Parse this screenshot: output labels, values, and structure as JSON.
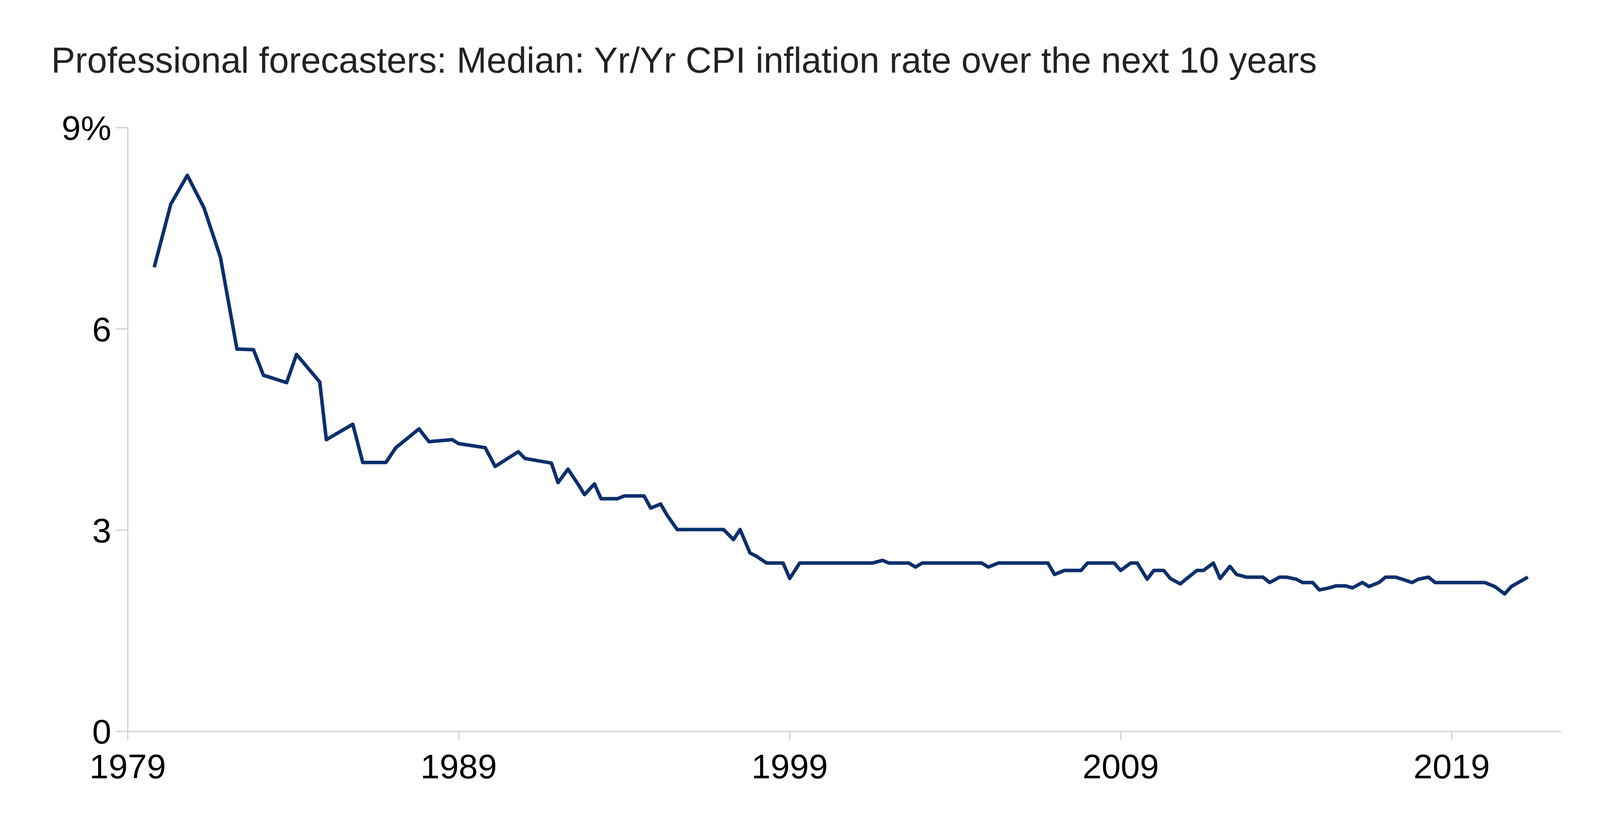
{
  "chart_data": {
    "type": "line",
    "title": "Professional forecasters: Median: Yr/Yr CPI inflation rate over the next 10 years",
    "color": "#0c2f6c",
    "grid": false,
    "xlim": [
      1979,
      2022.3
    ],
    "xticks": [
      1979,
      1989,
      1999,
      2009,
      2019
    ],
    "ylim": [
      0,
      9
    ],
    "yticks": [
      0,
      3,
      6,
      {
        "value": 9,
        "label": "9%"
      }
    ],
    "x": [
      1979.8,
      1980.3,
      1980.8,
      1981.3,
      1981.8,
      1982.3,
      1982.8,
      1983.1,
      1983.8,
      1984.1,
      1984.8,
      1985.0,
      1985.8,
      1986.1,
      1986.8,
      1987.1,
      1987.8,
      1988.1,
      1988.8,
      1989.0,
      1989.8,
      1990.1,
      1990.8,
      1991.0,
      1991.8,
      1992.0,
      1992.3,
      1992.6,
      1992.8,
      1993.1,
      1993.3,
      1993.8,
      1994.0,
      1994.6,
      1994.8,
      1995.1,
      1995.3,
      1995.6,
      1997.0,
      1997.3,
      1997.5,
      1997.8,
      1998.0,
      1998.3,
      1998.8,
      1999.0,
      1999.3,
      2001.5,
      2001.8,
      2002.0,
      2002.6,
      2002.8,
      2003.0,
      2004.8,
      2005.0,
      2005.3,
      2006.8,
      2007.0,
      2007.3,
      2007.8,
      2008.0,
      2008.8,
      2009.0,
      2009.3,
      2009.5,
      2009.8,
      2010.0,
      2010.3,
      2010.5,
      2010.8,
      2011.0,
      2011.3,
      2011.5,
      2011.8,
      2012.0,
      2012.3,
      2012.5,
      2012.8,
      2013.3,
      2013.5,
      2013.8,
      2014.0,
      2014.3,
      2014.5,
      2014.8,
      2015.0,
      2015.3,
      2015.5,
      2015.8,
      2016.0,
      2016.3,
      2016.5,
      2016.8,
      2017.0,
      2017.3,
      2017.5,
      2017.8,
      2018.0,
      2018.3,
      2018.5,
      2020.0,
      2020.3,
      2020.6,
      2020.8,
      2021.3
    ],
    "values": [
      6.92,
      7.86,
      8.29,
      7.81,
      7.07,
      5.7,
      5.69,
      5.31,
      5.2,
      5.62,
      5.21,
      4.35,
      4.58,
      4.01,
      4.01,
      4.23,
      4.51,
      4.32,
      4.35,
      4.29,
      4.23,
      3.95,
      4.17,
      4.07,
      4.0,
      3.71,
      3.91,
      3.69,
      3.53,
      3.69,
      3.47,
      3.47,
      3.51,
      3.51,
      3.33,
      3.39,
      3.22,
      3.01,
      3.01,
      2.86,
      3.01,
      2.66,
      2.61,
      2.51,
      2.51,
      2.28,
      2.51,
      2.51,
      2.55,
      2.51,
      2.51,
      2.45,
      2.51,
      2.51,
      2.45,
      2.51,
      2.51,
      2.34,
      2.4,
      2.4,
      2.51,
      2.51,
      2.4,
      2.51,
      2.51,
      2.27,
      2.4,
      2.4,
      2.28,
      2.2,
      2.28,
      2.4,
      2.4,
      2.51,
      2.28,
      2.46,
      2.34,
      2.3,
      2.3,
      2.22,
      2.3,
      2.3,
      2.27,
      2.22,
      2.22,
      2.11,
      2.14,
      2.17,
      2.17,
      2.14,
      2.22,
      2.16,
      2.22,
      2.3,
      2.3,
      2.27,
      2.22,
      2.27,
      2.3,
      2.22,
      2.22,
      2.16,
      2.05,
      2.16,
      2.3
    ]
  }
}
